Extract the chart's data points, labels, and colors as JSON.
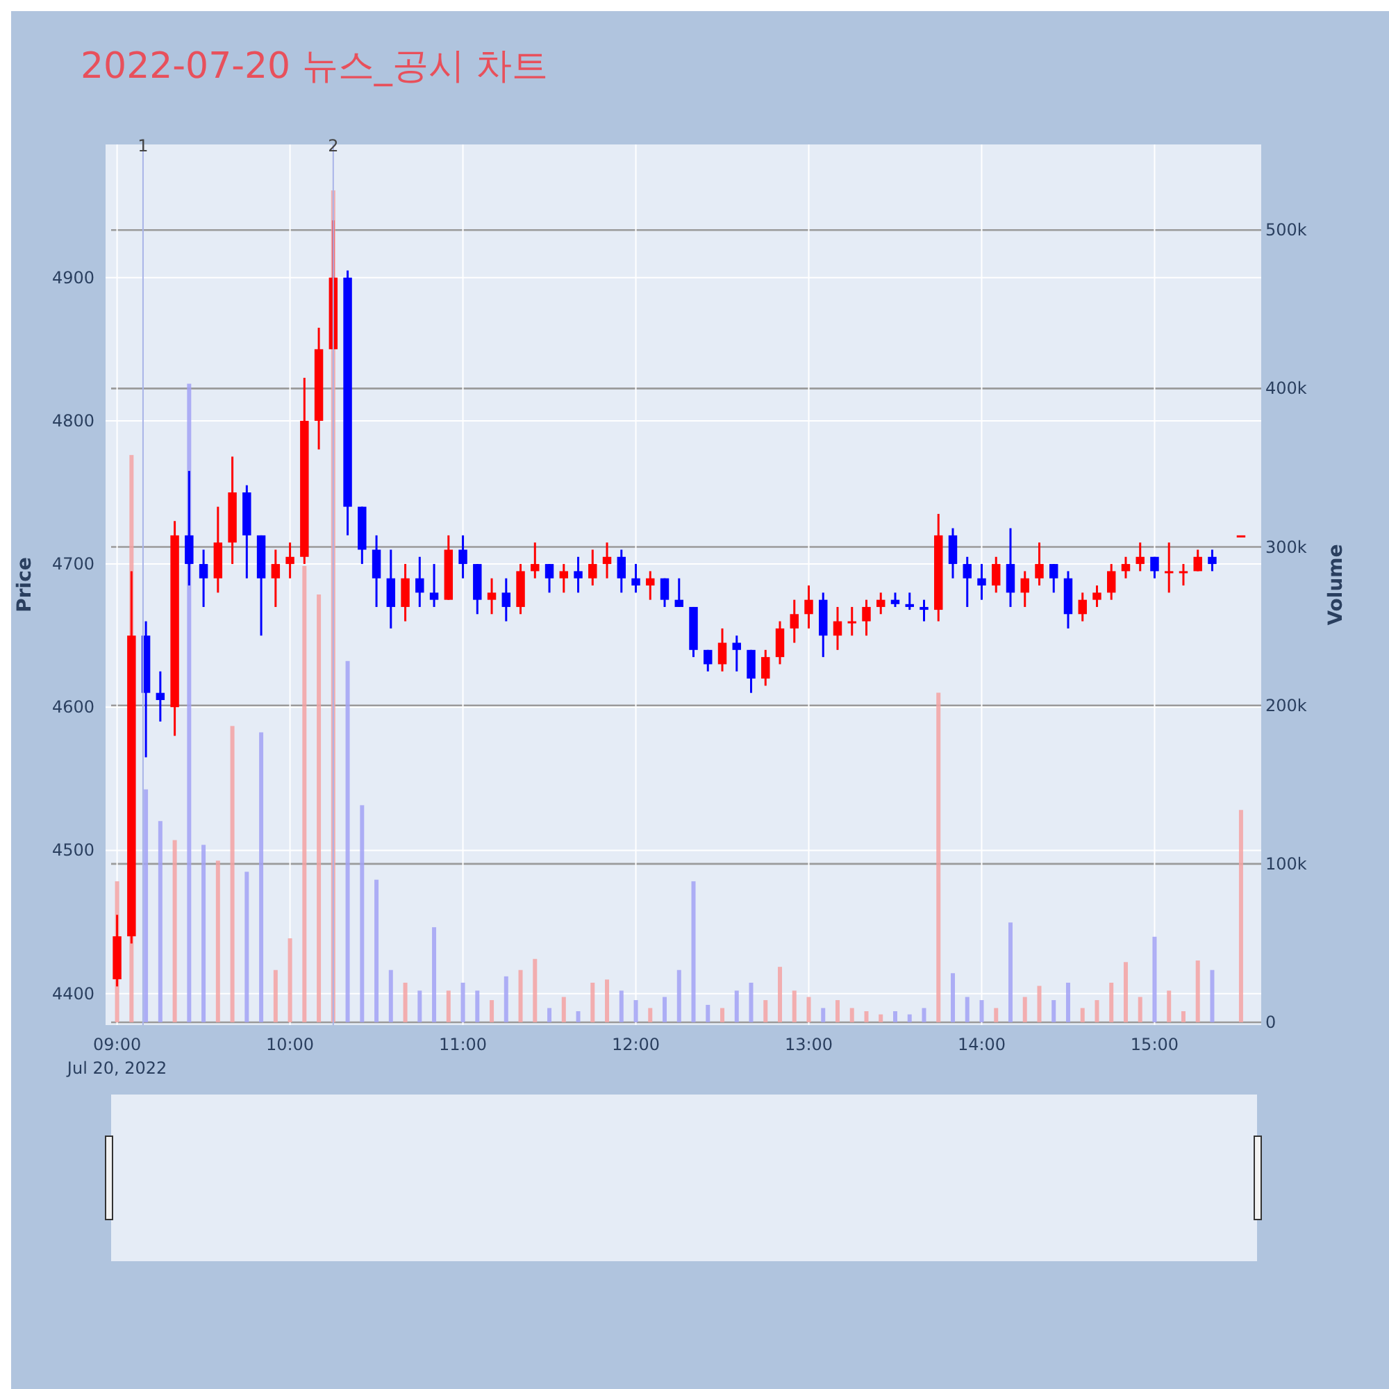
{
  "chart_data": {
    "type": "candlestick",
    "title": "2022-07-20 뉴스_공시 차트",
    "ylabel": "Price",
    "y2label": "Volume",
    "x": [
      "2022-07-20T09:00",
      "2022-07-20T09:05",
      "2022-07-20T09:10",
      "2022-07-20T09:15",
      "2022-07-20T09:20",
      "2022-07-20T09:25",
      "2022-07-20T09:30",
      "2022-07-20T09:35",
      "2022-07-20T09:40",
      "2022-07-20T09:45",
      "2022-07-20T09:50",
      "2022-07-20T09:55",
      "2022-07-20T10:00",
      "2022-07-20T10:05",
      "2022-07-20T10:10",
      "2022-07-20T10:15",
      "2022-07-20T10:20",
      "2022-07-20T10:25",
      "2022-07-20T10:30",
      "2022-07-20T10:35",
      "2022-07-20T10:40",
      "2022-07-20T10:45",
      "2022-07-20T10:50",
      "2022-07-20T10:55",
      "2022-07-20T11:00",
      "2022-07-20T11:05",
      "2022-07-20T11:10",
      "2022-07-20T11:15",
      "2022-07-20T11:20",
      "2022-07-20T11:25",
      "2022-07-20T11:30",
      "2022-07-20T11:35",
      "2022-07-20T11:40",
      "2022-07-20T11:45",
      "2022-07-20T11:50",
      "2022-07-20T11:55",
      "2022-07-20T12:00",
      "2022-07-20T12:05",
      "2022-07-20T12:10",
      "2022-07-20T12:15",
      "2022-07-20T12:20",
      "2022-07-20T12:25",
      "2022-07-20T12:30",
      "2022-07-20T12:35",
      "2022-07-20T12:40",
      "2022-07-20T12:45",
      "2022-07-20T12:50",
      "2022-07-20T12:55",
      "2022-07-20T13:00",
      "2022-07-20T13:05",
      "2022-07-20T13:10",
      "2022-07-20T13:15",
      "2022-07-20T13:20",
      "2022-07-20T13:25",
      "2022-07-20T13:30",
      "2022-07-20T13:35",
      "2022-07-20T13:40",
      "2022-07-20T13:45",
      "2022-07-20T13:50",
      "2022-07-20T13:55",
      "2022-07-20T14:00",
      "2022-07-20T14:05",
      "2022-07-20T14:10",
      "2022-07-20T14:15",
      "2022-07-20T14:20",
      "2022-07-20T14:25",
      "2022-07-20T14:30",
      "2022-07-20T14:35",
      "2022-07-20T14:40",
      "2022-07-20T14:45",
      "2022-07-20T14:50",
      "2022-07-20T14:55",
      "2022-07-20T15:00",
      "2022-07-20T15:05",
      "2022-07-20T15:10",
      "2022-07-20T15:15",
      "2022-07-20T15:20",
      "2022-07-20T15:30"
    ],
    "series": [
      {
        "type": "bar",
        "axis": "y2",
        "values": [
          89000,
          358000,
          147000,
          127000,
          115000,
          403000,
          112000,
          102000,
          187000,
          95000,
          183000,
          33000,
          53000,
          288000,
          270000,
          525000,
          228000,
          137000,
          90000,
          33000,
          25000,
          20000,
          60000,
          20000,
          25000,
          20000,
          14000,
          29000,
          33000,
          40000,
          9000,
          16000,
          7000,
          25000,
          27000,
          20000,
          14000,
          9000,
          16000,
          33000,
          89000,
          11000,
          9000,
          20000,
          25000,
          14000,
          35000,
          20000,
          16000,
          9000,
          14000,
          9000,
          7000,
          5000,
          7000,
          5000,
          9000,
          208000,
          31000,
          16000,
          14000,
          9000,
          63000,
          16000,
          23000,
          14000,
          25000,
          9000,
          14000,
          25000,
          38000,
          16000,
          54000,
          20000,
          7000,
          39000,
          33000,
          134000
        ],
        "colors": [
          "#f5a3a3",
          "#f5a3a3",
          "#a3a3f5",
          "#a3a3f5",
          "#f5a3a3",
          "#a3a3f5",
          "#a3a3f5",
          "#f5a3a3",
          "#f5a3a3",
          "#a3a3f5",
          "#a3a3f5",
          "#f5a3a3",
          "#f5a3a3",
          "#f5a3a3",
          "#f5a3a3",
          "#f5a3a3",
          "#a3a3f5",
          "#a3a3f5",
          "#a3a3f5",
          "#a3a3f5",
          "#f5a3a3",
          "#a3a3f5",
          "#a3a3f5",
          "#f5a3a3",
          "#a3a3f5",
          "#a3a3f5",
          "#f5a3a3",
          "#a3a3f5",
          "#f5a3a3",
          "#f5a3a3",
          "#a3a3f5",
          "#f5a3a3",
          "#a3a3f5",
          "#f5a3a3",
          "#f5a3a3",
          "#a3a3f5",
          "#a3a3f5",
          "#f5a3a3",
          "#a3a3f5",
          "#a3a3f5",
          "#a3a3f5",
          "#a3a3f5",
          "#f5a3a3",
          "#a3a3f5",
          "#a3a3f5",
          "#f5a3a3",
          "#f5a3a3",
          "#f5a3a3",
          "#f5a3a3",
          "#a3a3f5",
          "#f5a3a3",
          "#f5a3a3",
          "#f5a3a3",
          "#f5a3a3",
          "#a3a3f5",
          "#a3a3f5",
          "#a3a3f5",
          "#f5a3a3",
          "#a3a3f5",
          "#a3a3f5",
          "#a3a3f5",
          "#f5a3a3",
          "#a3a3f5",
          "#f5a3a3",
          "#f5a3a3",
          "#a3a3f5",
          "#a3a3f5",
          "#f5a3a3",
          "#f5a3a3",
          "#f5a3a3",
          "#f5a3a3",
          "#f5a3a3",
          "#a3a3f5",
          "#f5a3a3",
          "#f5a3a3",
          "#f5a3a3",
          "#a3a3f5",
          "#f5a3a3"
        ]
      },
      {
        "ohlc": [
          [
            4410,
            4455,
            4405,
            4440
          ],
          [
            4440,
            4695,
            4435,
            4650
          ],
          [
            4650,
            4660,
            4565,
            4610
          ],
          [
            4610,
            4625,
            4590,
            4605
          ],
          [
            4600,
            4730,
            4580,
            4720
          ],
          [
            4720,
            4765,
            4685,
            4700
          ],
          [
            4700,
            4710,
            4670,
            4690
          ],
          [
            4690,
            4740,
            4680,
            4715
          ],
          [
            4715,
            4775,
            4700,
            4750
          ],
          [
            4750,
            4755,
            4690,
            4720
          ],
          [
            4720,
            4720,
            4650,
            4690
          ],
          [
            4690,
            4710,
            4670,
            4700
          ],
          [
            4700,
            4715,
            4690,
            4705
          ],
          [
            4705,
            4830,
            4700,
            4800
          ],
          [
            4800,
            4865,
            4780,
            4850
          ],
          [
            4850,
            4940,
            4850,
            4900
          ],
          [
            4900,
            4905,
            4720,
            4740
          ],
          [
            4740,
            4740,
            4700,
            4710
          ],
          [
            4710,
            4720,
            4670,
            4690
          ],
          [
            4690,
            4710,
            4655,
            4670
          ],
          [
            4670,
            4700,
            4660,
            4690
          ],
          [
            4690,
            4705,
            4670,
            4680
          ],
          [
            4680,
            4700,
            4670,
            4675
          ],
          [
            4675,
            4720,
            4675,
            4710
          ],
          [
            4710,
            4720,
            4690,
            4700
          ],
          [
            4700,
            4700,
            4665,
            4675
          ],
          [
            4675,
            4690,
            4665,
            4680
          ],
          [
            4680,
            4690,
            4660,
            4670
          ],
          [
            4670,
            4700,
            4665,
            4695
          ],
          [
            4695,
            4715,
            4690,
            4700
          ],
          [
            4700,
            4700,
            4680,
            4690
          ],
          [
            4690,
            4700,
            4680,
            4695
          ],
          [
            4695,
            4705,
            4680,
            4690
          ],
          [
            4690,
            4710,
            4685,
            4700
          ],
          [
            4700,
            4715,
            4690,
            4705
          ],
          [
            4705,
            4710,
            4680,
            4690
          ],
          [
            4690,
            4700,
            4680,
            4685
          ],
          [
            4685,
            4695,
            4675,
            4690
          ],
          [
            4690,
            4690,
            4670,
            4675
          ],
          [
            4675,
            4690,
            4670,
            4670
          ],
          [
            4670,
            4670,
            4635,
            4640
          ],
          [
            4640,
            4640,
            4625,
            4630
          ],
          [
            4630,
            4655,
            4625,
            4645
          ],
          [
            4645,
            4650,
            4625,
            4640
          ],
          [
            4640,
            4640,
            4610,
            4620
          ],
          [
            4620,
            4640,
            4615,
            4635
          ],
          [
            4635,
            4660,
            4630,
            4655
          ],
          [
            4655,
            4675,
            4645,
            4665
          ],
          [
            4665,
            4685,
            4655,
            4675
          ],
          [
            4675,
            4680,
            4635,
            4650
          ],
          [
            4650,
            4670,
            4640,
            4660
          ],
          [
            4660,
            4670,
            4650,
            4660
          ],
          [
            4660,
            4675,
            4650,
            4670
          ],
          [
            4670,
            4680,
            4665,
            4675
          ],
          [
            4675,
            4680,
            4670,
            4672
          ],
          [
            4672,
            4680,
            4668,
            4670
          ],
          [
            4670,
            4675,
            4660,
            4668
          ],
          [
            4668,
            4735,
            4660,
            4720
          ],
          [
            4720,
            4725,
            4690,
            4700
          ],
          [
            4700,
            4705,
            4670,
            4690
          ],
          [
            4690,
            4700,
            4675,
            4685
          ],
          [
            4685,
            4705,
            4680,
            4700
          ],
          [
            4700,
            4725,
            4670,
            4680
          ],
          [
            4680,
            4695,
            4670,
            4690
          ],
          [
            4690,
            4715,
            4685,
            4700
          ],
          [
            4700,
            4700,
            4680,
            4690
          ],
          [
            4690,
            4695,
            4655,
            4665
          ],
          [
            4665,
            4680,
            4660,
            4675
          ],
          [
            4675,
            4685,
            4670,
            4680
          ],
          [
            4680,
            4700,
            4675,
            4695
          ],
          [
            4695,
            4705,
            4690,
            4700
          ],
          [
            4700,
            4715,
            4695,
            4705
          ],
          [
            4705,
            4705,
            4690,
            4695
          ],
          [
            4695,
            4715,
            4680,
            4695
          ],
          [
            4695,
            4700,
            4685,
            4695
          ],
          [
            4695,
            4710,
            4695,
            4705
          ],
          [
            4705,
            4710,
            4695,
            4700
          ],
          [
            4720,
            4720,
            4720,
            4720
          ]
        ],
        "colors": [
          "#ff0000",
          "#ff0000",
          "#0000ff",
          "#0000ff",
          "#ff0000",
          "#0000ff",
          "#0000ff",
          "#ff0000",
          "#ff0000",
          "#0000ff",
          "#0000ff",
          "#ff0000",
          "#ff0000",
          "#ff0000",
          "#ff0000",
          "#ff0000",
          "#0000ff",
          "#0000ff",
          "#0000ff",
          "#0000ff",
          "#ff0000",
          "#0000ff",
          "#0000ff",
          "#ff0000",
          "#0000ff",
          "#0000ff",
          "#ff0000",
          "#0000ff",
          "#ff0000",
          "#ff0000",
          "#0000ff",
          "#ff0000",
          "#0000ff",
          "#ff0000",
          "#ff0000",
          "#0000ff",
          "#0000ff",
          "#ff0000",
          "#0000ff",
          "#0000ff",
          "#0000ff",
          "#0000ff",
          "#ff0000",
          "#0000ff",
          "#0000ff",
          "#ff0000",
          "#ff0000",
          "#ff0000",
          "#ff0000",
          "#0000ff",
          "#ff0000",
          "#ff0000",
          "#ff0000",
          "#ff0000",
          "#0000ff",
          "#0000ff",
          "#0000ff",
          "#ff0000",
          "#0000ff",
          "#0000ff",
          "#0000ff",
          "#ff0000",
          "#0000ff",
          "#ff0000",
          "#ff0000",
          "#0000ff",
          "#0000ff",
          "#ff0000",
          "#ff0000",
          "#ff0000",
          "#ff0000",
          "#ff0000",
          "#0000ff",
          "#ff0000",
          "#ff0000",
          "#ff0000",
          "#0000ff",
          "#ff0000"
        ]
      }
    ],
    "xlim": [
      "2022-07-20T08:56",
      "2022-07-20T15:37"
    ],
    "xticks": [
      {
        "value": "2022-07-20T09:00",
        "label": "09:00\nJul 20, 2022"
      },
      {
        "value": "2022-07-20T10:00",
        "label": "10:00"
      },
      {
        "value": "2022-07-20T11:00",
        "label": "11:00"
      },
      {
        "value": "2022-07-20T12:00",
        "label": "12:00"
      },
      {
        "value": "2022-07-20T13:00",
        "label": "13:00"
      },
      {
        "value": "2022-07-20T14:00",
        "label": "14:00"
      },
      {
        "value": "2022-07-20T15:00",
        "label": "15:00"
      }
    ],
    "ylim": [
      4378,
      4993
    ],
    "yticks": [
      4400,
      4500,
      4600,
      4700,
      4800,
      4900
    ],
    "y2lim": [
      0,
      554000
    ],
    "y2ticks": [
      {
        "value": 0,
        "label": "0"
      },
      {
        "value": 100000,
        "label": "100k"
      },
      {
        "value": 200000,
        "label": "200k"
      },
      {
        "value": 300000,
        "label": "300k"
      },
      {
        "value": 400000,
        "label": "400k"
      },
      {
        "value": 500000,
        "label": "500k"
      }
    ],
    "ref_lines": [
      {
        "axis": "x",
        "value": "2022-07-20T09:09",
        "label": "1",
        "color": "#a9b4e8"
      },
      {
        "axis": "x",
        "value": "2022-07-20T10:15",
        "label": "2",
        "color": "#a9b4e8"
      }
    ],
    "grid": true
  }
}
